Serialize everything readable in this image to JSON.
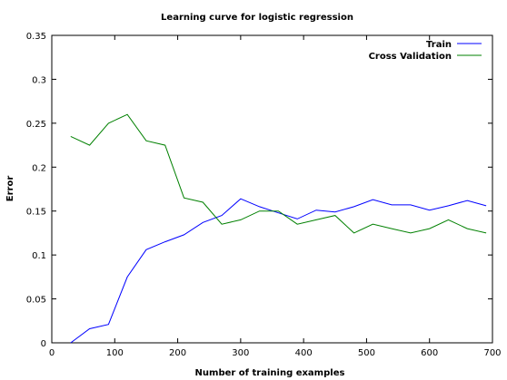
{
  "chart_data": {
    "type": "line",
    "title": "Learning curve for logistic regression",
    "xlabel": "Number of training examples",
    "ylabel": "Error",
    "xlim": [
      0,
      700
    ],
    "ylim": [
      0,
      0.35
    ],
    "xticks": [
      0,
      100,
      200,
      300,
      400,
      500,
      600,
      700
    ],
    "yticks": [
      0,
      0.05,
      0.1,
      0.15,
      0.2,
      0.25,
      0.3,
      0.35
    ],
    "ytick_labels": [
      "0",
      "0.05",
      "0.1",
      "0.15",
      "0.2",
      "0.25",
      "0.3",
      "0.35"
    ],
    "legend_position": "top-right",
    "grid": false,
    "series": [
      {
        "name": "Train",
        "color": "#0000ff",
        "x": [
          30,
          60,
          90,
          120,
          150,
          180,
          210,
          240,
          270,
          300,
          330,
          360,
          390,
          420,
          450,
          480,
          510,
          540,
          570,
          600,
          630,
          660,
          690
        ],
        "y": [
          0.0,
          0.016,
          0.021,
          0.075,
          0.106,
          0.115,
          0.123,
          0.137,
          0.145,
          0.164,
          0.155,
          0.148,
          0.141,
          0.151,
          0.149,
          0.155,
          0.163,
          0.157,
          0.157,
          0.151,
          0.156,
          0.162,
          0.156
        ]
      },
      {
        "name": "Cross Validation",
        "color": "#008000",
        "x": [
          30,
          60,
          90,
          120,
          150,
          180,
          210,
          240,
          270,
          300,
          330,
          360,
          390,
          420,
          450,
          480,
          510,
          540,
          570,
          600,
          630,
          660,
          690
        ],
        "y": [
          0.235,
          0.225,
          0.25,
          0.26,
          0.23,
          0.225,
          0.165,
          0.16,
          0.135,
          0.14,
          0.15,
          0.15,
          0.135,
          0.14,
          0.145,
          0.125,
          0.135,
          0.13,
          0.125,
          0.13,
          0.14,
          0.13,
          0.125
        ]
      }
    ]
  }
}
